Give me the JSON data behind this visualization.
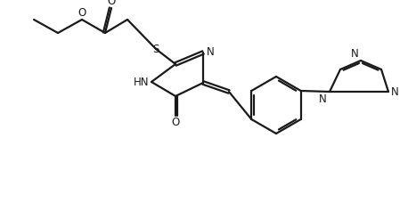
{
  "bg_color": "#ffffff",
  "line_color": "#1a1a1a",
  "text_color": "#1a1a1a",
  "line_width": 1.6,
  "font_size": 8.5,
  "figsize": [
    4.58,
    2.37
  ],
  "dpi": 100
}
